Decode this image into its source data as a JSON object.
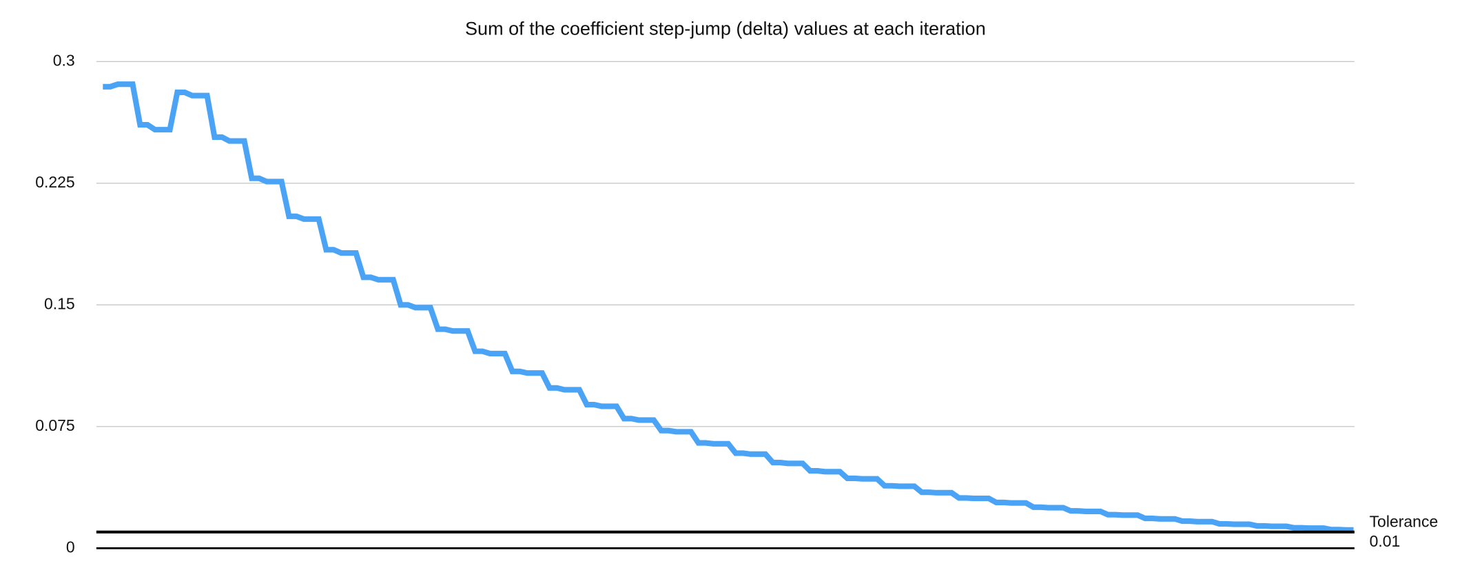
{
  "chart_data": {
    "type": "line",
    "title": "Sum of the coefficient step-jump (delta) values at each iteration",
    "color": "#4aa3f5",
    "values": [
      0.2845,
      0.2845,
      0.286,
      0.286,
      0.286,
      0.261,
      0.261,
      0.258,
      0.258,
      0.258,
      0.281,
      0.281,
      0.279,
      0.279,
      0.279,
      0.2534,
      0.2534,
      0.251,
      0.251,
      0.251,
      0.228,
      0.228,
      0.226,
      0.226,
      0.226,
      0.2046,
      0.2046,
      0.2029,
      0.2029,
      0.2029,
      0.184,
      0.184,
      0.182,
      0.182,
      0.182,
      0.167,
      0.167,
      0.1655,
      0.1655,
      0.1655,
      0.15,
      0.15,
      0.1483,
      0.1483,
      0.1483,
      0.135,
      0.135,
      0.1339,
      0.1339,
      0.1339,
      0.1214,
      0.1214,
      0.12,
      0.12,
      0.12,
      0.109,
      0.109,
      0.108,
      0.108,
      0.108,
      0.0988,
      0.0988,
      0.0977,
      0.0977,
      0.0977,
      0.0885,
      0.0885,
      0.0875,
      0.0875,
      0.0875,
      0.0799,
      0.0799,
      0.079,
      0.079,
      0.079,
      0.0725,
      0.0725,
      0.0718,
      0.0718,
      0.0718,
      0.0649,
      0.0649,
      0.0644,
      0.0644,
      0.0644,
      0.0586,
      0.0586,
      0.058,
      0.058,
      0.058,
      0.0528,
      0.0528,
      0.0523,
      0.0523,
      0.0523,
      0.0477,
      0.0477,
      0.0472,
      0.0472,
      0.0472,
      0.0431,
      0.0431,
      0.0428,
      0.0428,
      0.0428,
      0.0385,
      0.0385,
      0.0382,
      0.0382,
      0.0382,
      0.0345,
      0.0345,
      0.0342,
      0.0342,
      0.0342,
      0.031,
      0.031,
      0.0307,
      0.0307,
      0.0307,
      0.0282,
      0.0282,
      0.0279,
      0.0279,
      0.0279,
      0.0253,
      0.0253,
      0.025,
      0.025,
      0.025,
      0.023,
      0.023,
      0.0227,
      0.0227,
      0.0227,
      0.0207,
      0.0207,
      0.0204,
      0.0204,
      0.0204,
      0.0184,
      0.0184,
      0.0181,
      0.0181,
      0.0181,
      0.0167,
      0.0167,
      0.0164,
      0.0164,
      0.0164,
      0.015,
      0.015,
      0.0148,
      0.0148,
      0.0148,
      0.0138,
      0.0138,
      0.0135,
      0.0135,
      0.0135,
      0.0126,
      0.0126,
      0.0124,
      0.0124,
      0.0124,
      0.0115,
      0.0115,
      0.0113,
      0.0113
    ],
    "ylim": [
      0,
      0.3
    ],
    "yticks": [
      0,
      0.075,
      0.15,
      0.225,
      0.3
    ],
    "grid": true,
    "tolerance": {
      "label": "Tolerance",
      "value": 0.01
    }
  }
}
